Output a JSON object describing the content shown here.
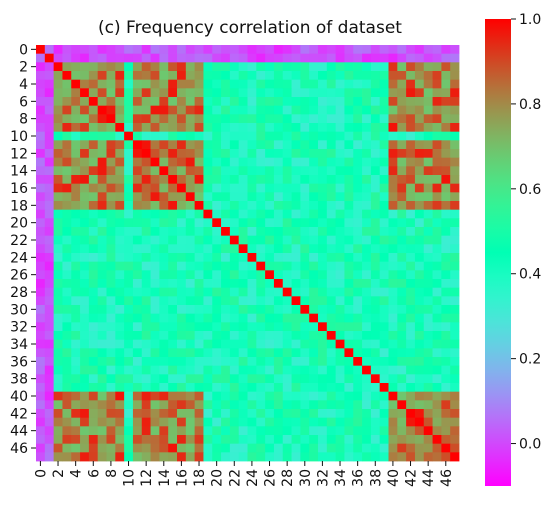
{
  "chart_data": {
    "type": "heatmap",
    "title": "(c) Frequency correlation of dataset",
    "size": 48,
    "row_tick_labels": [
      "0",
      "2",
      "4",
      "6",
      "8",
      "10",
      "12",
      "14",
      "16",
      "18",
      "20",
      "22",
      "24",
      "26",
      "28",
      "30",
      "32",
      "34",
      "36",
      "38",
      "40",
      "42",
      "44",
      "46"
    ],
    "col_tick_labels": [
      "0",
      "2",
      "4",
      "6",
      "8",
      "10",
      "12",
      "14",
      "16",
      "18",
      "20",
      "22",
      "24",
      "26",
      "28",
      "30",
      "32",
      "34",
      "36",
      "38",
      "40",
      "42",
      "44",
      "46"
    ],
    "tick_step": 2,
    "colorbar": {
      "min": -0.1,
      "max": 1.0,
      "ticks": [
        "1.0",
        "0.8",
        "0.6",
        "0.4",
        "0.2",
        "0.0"
      ],
      "tick_values": [
        1.0,
        0.8,
        0.6,
        0.4,
        0.2,
        0.0
      ],
      "colormap": "rainbow"
    },
    "blocks": {
      "high_group": [
        2,
        3,
        4,
        5,
        6,
        7,
        8,
        9,
        11,
        12,
        13,
        14,
        15,
        16,
        17,
        18,
        40,
        41,
        42,
        43,
        44,
        45,
        46,
        47
      ],
      "low_group": [
        0,
        1
      ]
    },
    "values_description": "diagonal = 1.0; rows/cols 0-1 ≈ 0.0-0.15; high-group pairs ≈ 0.7-1.0; other pairs ≈ 0.3-0.55"
  }
}
